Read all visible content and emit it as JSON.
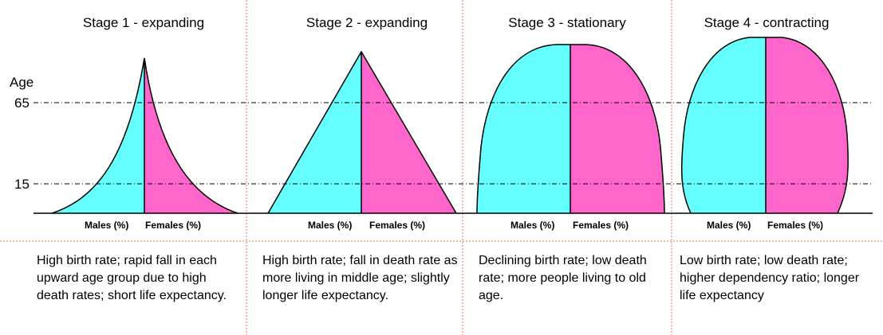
{
  "axis": {
    "y_label": "Age",
    "tick_65": "65",
    "tick_15": "15"
  },
  "colors": {
    "male": "#66ffff",
    "female": "#ff66cc",
    "divider": "#e8735a"
  },
  "stages": [
    {
      "title": "Stage 1 - expanding",
      "males": "Males (%)",
      "females": "Females (%)",
      "description": "High birth rate; rapid fall in each upward age group due to high death rates; short life expectancy."
    },
    {
      "title": "Stage 2 - expanding",
      "males": "Males (%)",
      "females": "Females (%)",
      "description": "High birth rate; fall in death rate as more living in middle age; slightly longer life expectancy."
    },
    {
      "title": "Stage 3 - stationary",
      "males": "Males (%)",
      "females": "Females (%)",
      "description": "Declining birth rate; low death rate; more people living to old age."
    },
    {
      "title": "Stage 4 - contracting",
      "males": "Males (%)",
      "females": "Females (%)",
      "description": "Low birth rate; low death rate; higher dependency ratio; longer life expectancy"
    }
  ]
}
